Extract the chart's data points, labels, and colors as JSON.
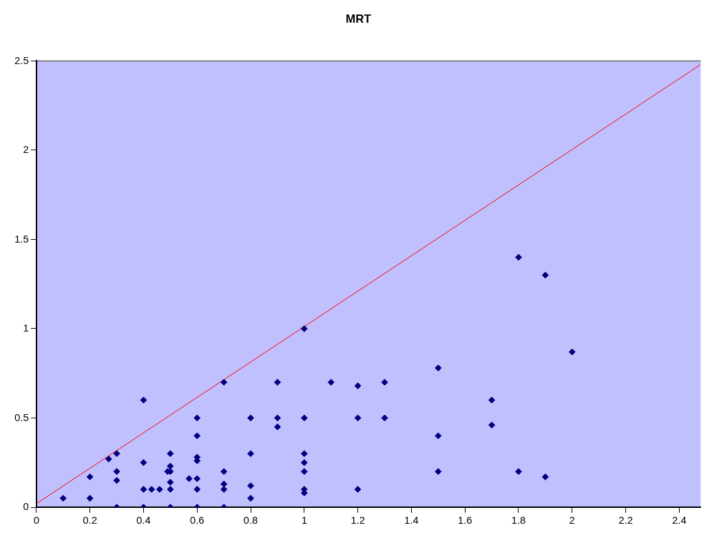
{
  "chart_data": {
    "type": "scatter",
    "title": "MRT",
    "x": [
      0.1,
      0.2,
      0.2,
      0.27,
      0.3,
      0.3,
      0.3,
      0.3,
      0.4,
      0.4,
      0.4,
      0.4,
      0.43,
      0.46,
      0.5,
      0.5,
      0.5,
      0.49,
      0.5,
      0.5,
      0.5,
      0.57,
      0.6,
      0.6,
      0.6,
      0.6,
      0.6,
      0.6,
      0.6,
      0.7,
      0.7,
      0.7,
      0.7,
      0.7,
      0.8,
      0.8,
      0.8,
      0.8,
      0.9,
      0.9,
      0.9,
      1,
      1,
      1,
      1,
      1,
      1,
      1,
      1.1,
      1.2,
      1.2,
      1.2,
      1.3,
      1.3,
      1.5,
      1.5,
      1.5,
      1.7,
      1.7,
      1.8,
      1.8,
      1.9,
      1.9,
      2
    ],
    "series": [
      {
        "type": "scatter",
        "color": "#000080",
        "marker": "diamond",
        "values": [
          0.05,
          0.05,
          0.17,
          0.27,
          0.3,
          0.2,
          0.15,
          0,
          0.6,
          0.25,
          0.1,
          0,
          0.1,
          0.1,
          0.3,
          0.23,
          0.2,
          0.2,
          0.14,
          0.1,
          0,
          0.16,
          0.5,
          0.4,
          0.28,
          0.26,
          0.16,
          0.1,
          0,
          0.7,
          0.2,
          0.13,
          0.1,
          0,
          0.5,
          0.3,
          0.12,
          0.05,
          0.7,
          0.5,
          0.45,
          1,
          0.5,
          0.3,
          0.25,
          0.2,
          0.1,
          0.08,
          0.7,
          0.68,
          0.5,
          0.1,
          0.7,
          0.5,
          0.78,
          0.4,
          0.2,
          0.6,
          0.46,
          1.4,
          0.2,
          1.3,
          0.17,
          0.87
        ]
      },
      {
        "type": "line",
        "color": "#ff0000",
        "marker": "none",
        "x": [
          0,
          2.48
        ],
        "values": [
          0.02,
          2.48
        ]
      }
    ],
    "xlim": [
      0,
      2.48
    ],
    "xticks": [
      0,
      0.2,
      0.4,
      0.6,
      0.8,
      1,
      1.2,
      1.4,
      1.6,
      1.8,
      2,
      2.2,
      2.4
    ],
    "ylim": [
      0,
      2.5
    ],
    "yticks": [
      0,
      0.5,
      1,
      1.5,
      2,
      2.5
    ],
    "grid": false,
    "legend": false
  }
}
